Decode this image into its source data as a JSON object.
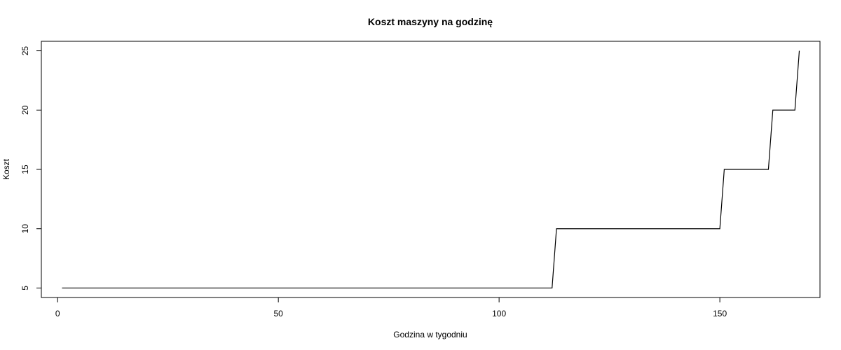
{
  "chart_data": {
    "type": "line",
    "title": "Koszt maszyny na godzinę",
    "xlabel": "Godzina w tygodniu",
    "ylabel": "Koszt",
    "xlim": [
      -3.68,
      172.68
    ],
    "ylim": [
      4.2,
      25.8
    ],
    "x_ticks": [
      0,
      50,
      100,
      150
    ],
    "y_ticks": [
      5,
      10,
      15,
      20,
      25
    ],
    "grid": false,
    "legend": "none",
    "line_color": "#000000",
    "series": [
      {
        "segments": [
          {
            "from_hour": 1,
            "to_hour": 112,
            "value": 5
          },
          {
            "from_hour": 113,
            "to_hour": 150,
            "value": 10
          },
          {
            "from_hour": 151,
            "to_hour": 161,
            "value": 15
          },
          {
            "from_hour": 162,
            "to_hour": 167,
            "value": 20
          },
          {
            "from_hour": 168,
            "to_hour": 168,
            "value": 25
          }
        ]
      }
    ]
  }
}
